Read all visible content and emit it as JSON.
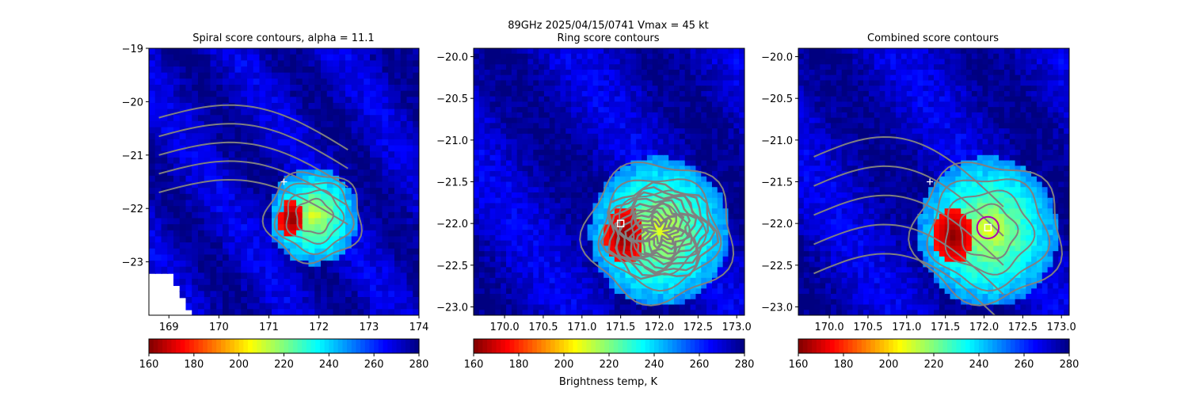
{
  "figure": {
    "suptitle_line1": "89GHz  2025/04/15/0741    Vmax = 45 kt",
    "colorbar_label": "Brightness temp, K"
  },
  "colors": {
    "contour": "#808080",
    "marker_plus": "#ffffff",
    "marker_square": "#ffffff",
    "center_circle": "#b000b0",
    "missing_data": "#ffffff"
  },
  "colormap": {
    "name": "jet_r",
    "range": [
      160,
      280
    ],
    "ticks": [
      "160",
      "180",
      "200",
      "220",
      "240",
      "260",
      "280"
    ]
  },
  "chart_data": [
    {
      "type": "heatmap",
      "title": "Spiral score contours, alpha = 11.1",
      "xlim": [
        168.6,
        174.0
      ],
      "ylim": [
        -24.0,
        -19.0
      ],
      "xticks": [
        "169",
        "170",
        "171",
        "172",
        "173",
        "174"
      ],
      "yticks": [
        "−19",
        "−20",
        "−21",
        "−22",
        "−23"
      ],
      "markers": [
        {
          "symbol": "plus",
          "lon": 171.3,
          "lat": -21.5
        }
      ],
      "storm_center": {
        "lon": 171.9,
        "lat": -22.15
      },
      "cold_core_min_K": 160,
      "background_K": 270
    },
    {
      "type": "heatmap",
      "title": "Ring score contours",
      "xlim": [
        169.6,
        173.1
      ],
      "ylim": [
        -23.1,
        -19.9
      ],
      "xticks": [
        "170.0",
        "170.5",
        "171.0",
        "171.5",
        "172.0",
        "172.5",
        "173.0"
      ],
      "yticks": [
        "−20.0",
        "−20.5",
        "−21.0",
        "−21.5",
        "−22.0",
        "−22.5",
        "−23.0"
      ],
      "markers": [
        {
          "symbol": "square",
          "lon": 171.5,
          "lat": -22.0
        }
      ],
      "storm_center": {
        "lon": 172.0,
        "lat": -22.1
      },
      "cold_core_min_K": 160,
      "background_K": 270
    },
    {
      "type": "heatmap",
      "title": "Combined score contours",
      "xlim": [
        169.6,
        173.1
      ],
      "ylim": [
        -23.1,
        -19.9
      ],
      "xticks": [
        "170.0",
        "170.5",
        "171.0",
        "171.5",
        "172.0",
        "172.5",
        "173.0"
      ],
      "yticks": [
        "−20.0",
        "−20.5",
        "−21.0",
        "−21.5",
        "−22.0",
        "−22.5",
        "−23.0"
      ],
      "markers": [
        {
          "symbol": "plus",
          "lon": 171.3,
          "lat": -21.5
        },
        {
          "symbol": "square",
          "lon": 172.05,
          "lat": -22.05
        },
        {
          "symbol": "circle",
          "lon": 172.05,
          "lat": -22.05,
          "radius_deg": 0.14
        }
      ],
      "storm_center": {
        "lon": 172.05,
        "lat": -22.1
      },
      "cold_core_min_K": 160,
      "background_K": 270
    }
  ]
}
